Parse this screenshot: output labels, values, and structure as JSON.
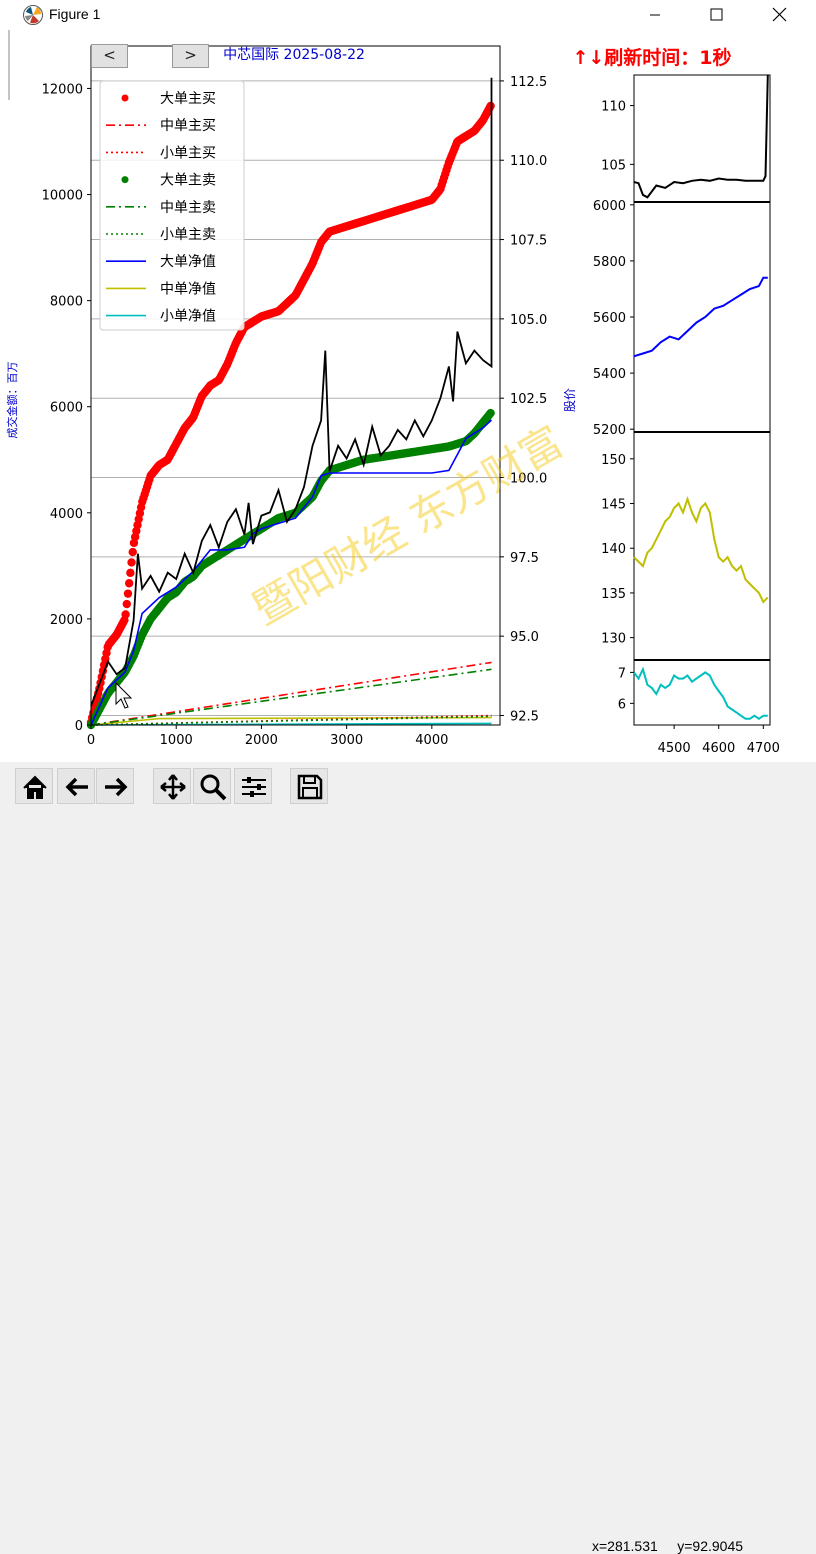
{
  "window": {
    "title": "Figure 1"
  },
  "figure": {
    "title": "中芯国际  2025-08-22",
    "refresh_text": "↑↓刷新时间：1秒",
    "left_axis_label": "成交金额：百万",
    "right_axis_label": "股价",
    "watermark": "暨阳财经  东方财富",
    "nav_prev": "<",
    "nav_next": ">"
  },
  "toolbar": {
    "coords": "x=281.531     y=92.9045",
    "buttons": [
      "home-icon",
      "back-icon",
      "forward-icon",
      "pan-icon",
      "zoom-icon",
      "configure-icon",
      "save-icon"
    ]
  },
  "chart_data": [
    {
      "id": "main",
      "type": "line",
      "x_range": [
        0,
        4800
      ],
      "x_ticks": [
        "0",
        "1000",
        "2000",
        "3000",
        "4000"
      ],
      "ylim_left": [
        0,
        12800
      ],
      "y_ticks_left": [
        "0",
        "2000",
        "4000",
        "6000",
        "8000",
        "10000",
        "12000"
      ],
      "ylim_right": [
        92.2,
        113.6
      ],
      "y_ticks_right": [
        "92.5",
        "95.0",
        "97.5",
        "100.0",
        "102.5",
        "105.0",
        "107.5",
        "110.0",
        "112.5"
      ],
      "grid": "horizontal",
      "legend_position": "top-left",
      "legend": [
        {
          "label": "大单主买",
          "color": "#ff0000",
          "style": "marker"
        },
        {
          "label": "中单主买",
          "color": "#ff0000",
          "style": "dashdot"
        },
        {
          "label": "小单主买",
          "color": "#ff0000",
          "style": "dotted"
        },
        {
          "label": "大单主卖",
          "color": "#008000",
          "style": "marker"
        },
        {
          "label": "中单主卖",
          "color": "#008000",
          "style": "dashdot"
        },
        {
          "label": "小单主卖",
          "color": "#008000",
          "style": "dotted"
        },
        {
          "label": "大单净值",
          "color": "#0000ff",
          "style": "solid"
        },
        {
          "label": "中单净值",
          "color": "#bfbf00",
          "style": "solid"
        },
        {
          "label": "小单净值",
          "color": "#00bfbf",
          "style": "solid"
        }
      ],
      "series": [
        {
          "name": "大单主买",
          "axis": "left",
          "color": "#ff0000",
          "style": "marker",
          "x": [
            0,
            100,
            200,
            300,
            400,
            500,
            600,
            700,
            800,
            900,
            1000,
            1100,
            1200,
            1300,
            1400,
            1500,
            1600,
            1700,
            1800,
            1900,
            2000,
            2200,
            2400,
            2600,
            2700,
            2800,
            3000,
            3200,
            3400,
            3600,
            3800,
            4000,
            4100,
            4200,
            4300,
            4400,
            4500,
            4600,
            4700
          ],
          "y": [
            50,
            700,
            1500,
            1700,
            2000,
            3400,
            4200,
            4700,
            4900,
            5000,
            5300,
            5600,
            5800,
            6200,
            6400,
            6500,
            6800,
            7200,
            7500,
            7600,
            7700,
            7800,
            8100,
            8700,
            9100,
            9300,
            9400,
            9500,
            9600,
            9700,
            9800,
            9900,
            10100,
            10600,
            11000,
            11100,
            11200,
            11400,
            11700
          ]
        },
        {
          "name": "中单主买",
          "axis": "left",
          "color": "#ff0000",
          "style": "dashdot",
          "x": [
            0,
            4700
          ],
          "y": [
            0,
            1180
          ]
        },
        {
          "name": "小单主买",
          "axis": "left",
          "color": "#ff0000",
          "style": "dotted",
          "x": [
            0,
            4700
          ],
          "y": [
            0,
            180
          ]
        },
        {
          "name": "大单主卖",
          "axis": "left",
          "color": "#008000",
          "style": "marker",
          "x": [
            0,
            100,
            200,
            300,
            400,
            500,
            600,
            700,
            800,
            900,
            1000,
            1100,
            1200,
            1300,
            1400,
            1500,
            1600,
            1700,
            1800,
            1900,
            2000,
            2200,
            2400,
            2600,
            2700,
            2800,
            3000,
            3200,
            3400,
            3600,
            3800,
            4000,
            4200,
            4300,
            4400,
            4500,
            4600,
            4700
          ],
          "y": [
            0,
            300,
            600,
            800,
            1000,
            1300,
            1700,
            2000,
            2200,
            2400,
            2500,
            2700,
            2800,
            3000,
            3100,
            3200,
            3300,
            3400,
            3500,
            3600,
            3700,
            3900,
            4000,
            4300,
            4600,
            4800,
            4900,
            5000,
            5050,
            5100,
            5150,
            5200,
            5250,
            5300,
            5350,
            5500,
            5700,
            5900
          ]
        },
        {
          "name": "中单主卖",
          "axis": "left",
          "color": "#008000",
          "style": "dashdot",
          "x": [
            0,
            4700
          ],
          "y": [
            0,
            1050
          ]
        },
        {
          "name": "小单主卖",
          "axis": "left",
          "color": "#008000",
          "style": "dotted",
          "x": [
            0,
            4700
          ],
          "y": [
            0,
            160
          ]
        },
        {
          "name": "大单净值",
          "axis": "left",
          "color": "#0000ff",
          "style": "solid",
          "x": [
            0,
            200,
            400,
            500,
            600,
            800,
            1000,
            1200,
            1400,
            1600,
            1800,
            1900,
            2000,
            2200,
            2400,
            2600,
            2700,
            2800,
            3000,
            3200,
            3400,
            3600,
            3800,
            4000,
            4200,
            4300,
            4400,
            4500,
            4600,
            4700
          ],
          "y": [
            0,
            700,
            1000,
            1400,
            2100,
            2400,
            2600,
            2900,
            3300,
            3300,
            3350,
            3600,
            3700,
            3800,
            3900,
            4300,
            4700,
            4750,
            4750,
            4750,
            4750,
            4750,
            4750,
            4750,
            4800,
            5100,
            5400,
            5500,
            5600,
            5750
          ]
        },
        {
          "name": "中单净值",
          "axis": "left",
          "color": "#bfbf00",
          "style": "solid",
          "x": [
            0,
            400,
            800,
            4700
          ],
          "y": [
            0,
            60,
            120,
            140
          ]
        },
        {
          "name": "小单净值",
          "axis": "left",
          "color": "#00bfbf",
          "style": "solid",
          "x": [
            0,
            4700
          ],
          "y": [
            0,
            30
          ]
        },
        {
          "name": "股价",
          "axis": "right",
          "color": "#000000",
          "style": "solid",
          "x": [
            0,
            100,
            200,
            300,
            400,
            500,
            550,
            600,
            700,
            800,
            900,
            1000,
            1100,
            1200,
            1300,
            1400,
            1500,
            1600,
            1700,
            1800,
            1850,
            1900,
            2000,
            2100,
            2200,
            2300,
            2400,
            2500,
            2600,
            2700,
            2750,
            2800,
            2900,
            3000,
            3100,
            3200,
            3300,
            3400,
            3500,
            3600,
            3700,
            3800,
            3900,
            4000,
            4100,
            4200,
            4250,
            4300,
            4400,
            4500,
            4600,
            4700,
            4700
          ],
          "y": [
            92.8,
            93.5,
            94.2,
            93.8,
            94.0,
            95.5,
            97.6,
            96.5,
            96.9,
            96.4,
            97.0,
            96.8,
            97.6,
            97.0,
            98.0,
            98.5,
            97.8,
            98.6,
            99.0,
            98.2,
            99.2,
            97.9,
            98.8,
            98.9,
            99.6,
            98.6,
            99.0,
            99.7,
            101.0,
            101.8,
            104.0,
            100.2,
            101.0,
            100.6,
            101.2,
            100.4,
            101.6,
            100.7,
            101.0,
            101.5,
            101.2,
            101.8,
            101.3,
            101.8,
            102.5,
            103.5,
            102.4,
            104.6,
            103.6,
            104.0,
            103.7,
            103.5,
            112.6
          ]
        }
      ]
    },
    {
      "id": "price-mini",
      "type": "line",
      "x_range": [
        4410,
        4715
      ],
      "y_range": [
        101.8,
        112.6
      ],
      "y_ticks": [
        "105",
        "110"
      ],
      "series": [
        {
          "color": "#000000",
          "x": [
            4410,
            4420,
            4430,
            4440,
            4460,
            4480,
            4500,
            4520,
            4540,
            4560,
            4580,
            4600,
            4620,
            4640,
            4660,
            4680,
            4700,
            4705,
            4710
          ],
          "y": [
            103.5,
            103.4,
            102.4,
            102.2,
            103.2,
            103.0,
            103.5,
            103.4,
            103.6,
            103.7,
            103.6,
            103.8,
            103.7,
            103.7,
            103.6,
            103.6,
            103.6,
            104.0,
            112.6
          ]
        }
      ]
    },
    {
      "id": "large-net-mini",
      "type": "line",
      "x_range": [
        4410,
        4715
      ],
      "y_range": [
        5190,
        6010
      ],
      "y_ticks": [
        "5200",
        "5400",
        "5600",
        "5800",
        "6000"
      ],
      "series": [
        {
          "color": "#0000ff",
          "x": [
            4410,
            4430,
            4450,
            4470,
            4490,
            4510,
            4530,
            4550,
            4570,
            4590,
            4610,
            4630,
            4650,
            4670,
            4690,
            4700,
            4710
          ],
          "y": [
            5460,
            5470,
            5480,
            5510,
            5530,
            5520,
            5550,
            5580,
            5600,
            5630,
            5640,
            5660,
            5680,
            5700,
            5710,
            5740,
            5740
          ]
        }
      ]
    },
    {
      "id": "mid-net-mini",
      "type": "line",
      "x_range": [
        4410,
        4715
      ],
      "y_range": [
        127.5,
        153
      ],
      "y_ticks": [
        "130",
        "135",
        "140",
        "145",
        "150"
      ],
      "series": [
        {
          "color": "#bfbf00",
          "x": [
            4410,
            4420,
            4430,
            4440,
            4450,
            4460,
            4470,
            4480,
            4490,
            4500,
            4510,
            4520,
            4530,
            4540,
            4550,
            4560,
            4570,
            4580,
            4590,
            4600,
            4610,
            4620,
            4630,
            4640,
            4650,
            4660,
            4670,
            4680,
            4690,
            4700,
            4710
          ],
          "y": [
            139,
            138.5,
            138,
            139.5,
            140,
            141,
            142,
            143,
            143.5,
            144.5,
            145,
            144,
            145.5,
            144,
            143,
            144.5,
            145,
            144,
            141,
            139,
            138.5,
            139,
            138,
            137.5,
            138,
            136.5,
            136,
            135.5,
            135,
            134,
            134.5
          ]
        }
      ]
    },
    {
      "id": "small-net-mini",
      "type": "line",
      "x_range": [
        4410,
        4715
      ],
      "y_range": [
        5.3,
        7.4
      ],
      "y_ticks": [
        "6",
        "7"
      ],
      "series": [
        {
          "color": "#00bfbf",
          "x": [
            4410,
            4420,
            4430,
            4440,
            4450,
            4460,
            4470,
            4480,
            4490,
            4500,
            4510,
            4520,
            4530,
            4540,
            4550,
            4560,
            4570,
            4580,
            4590,
            4600,
            4610,
            4620,
            4630,
            4640,
            4650,
            4660,
            4670,
            4680,
            4690,
            4700,
            4710
          ],
          "y": [
            7.0,
            6.8,
            7.1,
            6.6,
            6.5,
            6.3,
            6.6,
            6.5,
            6.6,
            6.9,
            6.8,
            6.8,
            6.9,
            6.7,
            6.8,
            6.9,
            7.0,
            6.9,
            6.6,
            6.4,
            6.2,
            5.9,
            5.8,
            5.7,
            5.6,
            5.5,
            5.5,
            5.6,
            5.5,
            5.6,
            5.6
          ]
        }
      ]
    }
  ]
}
